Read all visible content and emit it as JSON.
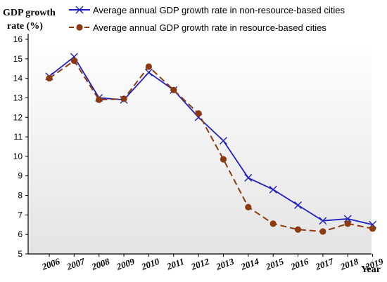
{
  "chart_data": {
    "type": "line",
    "ylabel_line1": "GDP growth",
    "ylabel_line2": "rate (%)",
    "xlabel": "Year",
    "categories": [
      "2006",
      "2007",
      "2008",
      "2009",
      "2010",
      "2011",
      "2012",
      "2013",
      "2014",
      "2015",
      "2016",
      "2017",
      "2018",
      "2019"
    ],
    "ylim": [
      5,
      16
    ],
    "yticks": [
      "5",
      "6",
      "7",
      "8",
      "9",
      "10",
      "11",
      "12",
      "13",
      "14",
      "15",
      "16"
    ],
    "grid": false,
    "legend_position": "top",
    "series": [
      {
        "name": "Average annual GDP growth rate in non-resource-based cities",
        "color": "#1f1fbf",
        "marker": "x-mark",
        "line_style": "solid",
        "values": [
          14.1,
          15.1,
          13.0,
          12.9,
          14.3,
          13.4,
          12.0,
          10.8,
          8.9,
          8.3,
          7.5,
          6.7,
          6.8,
          6.5
        ]
      },
      {
        "name": "Average annual GDP growth rate in resource-based cities",
        "color": "#8b3a10",
        "marker": "dot",
        "line_style": "dashed",
        "values": [
          14.0,
          14.9,
          12.9,
          12.95,
          14.6,
          13.4,
          12.2,
          9.85,
          7.4,
          6.55,
          6.25,
          6.15,
          6.55,
          6.3
        ]
      }
    ]
  }
}
